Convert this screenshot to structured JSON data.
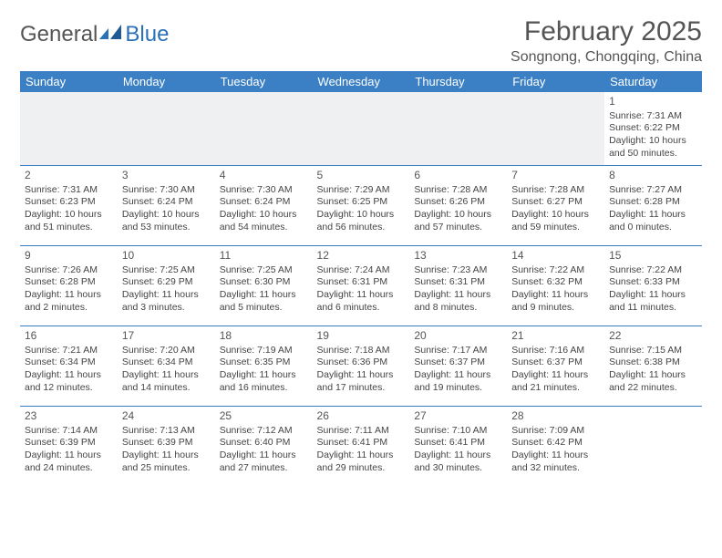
{
  "logo": {
    "text1": "General",
    "text2": "Blue"
  },
  "title": "February 2025",
  "location": "Songnong, Chongqing, China",
  "colors": {
    "header_bg": "#3b7fc4",
    "header_text": "#ffffff",
    "row_divider": "#3b7fc4",
    "empty_bg": "#eef0f2",
    "body_text": "#444444",
    "title_text": "#555555",
    "logo_blue": "#2a71b8"
  },
  "day_headers": [
    "Sunday",
    "Monday",
    "Tuesday",
    "Wednesday",
    "Thursday",
    "Friday",
    "Saturday"
  ],
  "weeks": [
    [
      null,
      null,
      null,
      null,
      null,
      null,
      {
        "n": "1",
        "sr": "Sunrise: 7:31 AM",
        "ss": "Sunset: 6:22 PM",
        "dl": "Daylight: 10 hours and 50 minutes."
      }
    ],
    [
      {
        "n": "2",
        "sr": "Sunrise: 7:31 AM",
        "ss": "Sunset: 6:23 PM",
        "dl": "Daylight: 10 hours and 51 minutes."
      },
      {
        "n": "3",
        "sr": "Sunrise: 7:30 AM",
        "ss": "Sunset: 6:24 PM",
        "dl": "Daylight: 10 hours and 53 minutes."
      },
      {
        "n": "4",
        "sr": "Sunrise: 7:30 AM",
        "ss": "Sunset: 6:24 PM",
        "dl": "Daylight: 10 hours and 54 minutes."
      },
      {
        "n": "5",
        "sr": "Sunrise: 7:29 AM",
        "ss": "Sunset: 6:25 PM",
        "dl": "Daylight: 10 hours and 56 minutes."
      },
      {
        "n": "6",
        "sr": "Sunrise: 7:28 AM",
        "ss": "Sunset: 6:26 PM",
        "dl": "Daylight: 10 hours and 57 minutes."
      },
      {
        "n": "7",
        "sr": "Sunrise: 7:28 AM",
        "ss": "Sunset: 6:27 PM",
        "dl": "Daylight: 10 hours and 59 minutes."
      },
      {
        "n": "8",
        "sr": "Sunrise: 7:27 AM",
        "ss": "Sunset: 6:28 PM",
        "dl": "Daylight: 11 hours and 0 minutes."
      }
    ],
    [
      {
        "n": "9",
        "sr": "Sunrise: 7:26 AM",
        "ss": "Sunset: 6:28 PM",
        "dl": "Daylight: 11 hours and 2 minutes."
      },
      {
        "n": "10",
        "sr": "Sunrise: 7:25 AM",
        "ss": "Sunset: 6:29 PM",
        "dl": "Daylight: 11 hours and 3 minutes."
      },
      {
        "n": "11",
        "sr": "Sunrise: 7:25 AM",
        "ss": "Sunset: 6:30 PM",
        "dl": "Daylight: 11 hours and 5 minutes."
      },
      {
        "n": "12",
        "sr": "Sunrise: 7:24 AM",
        "ss": "Sunset: 6:31 PM",
        "dl": "Daylight: 11 hours and 6 minutes."
      },
      {
        "n": "13",
        "sr": "Sunrise: 7:23 AM",
        "ss": "Sunset: 6:31 PM",
        "dl": "Daylight: 11 hours and 8 minutes."
      },
      {
        "n": "14",
        "sr": "Sunrise: 7:22 AM",
        "ss": "Sunset: 6:32 PM",
        "dl": "Daylight: 11 hours and 9 minutes."
      },
      {
        "n": "15",
        "sr": "Sunrise: 7:22 AM",
        "ss": "Sunset: 6:33 PM",
        "dl": "Daylight: 11 hours and 11 minutes."
      }
    ],
    [
      {
        "n": "16",
        "sr": "Sunrise: 7:21 AM",
        "ss": "Sunset: 6:34 PM",
        "dl": "Daylight: 11 hours and 12 minutes."
      },
      {
        "n": "17",
        "sr": "Sunrise: 7:20 AM",
        "ss": "Sunset: 6:34 PM",
        "dl": "Daylight: 11 hours and 14 minutes."
      },
      {
        "n": "18",
        "sr": "Sunrise: 7:19 AM",
        "ss": "Sunset: 6:35 PM",
        "dl": "Daylight: 11 hours and 16 minutes."
      },
      {
        "n": "19",
        "sr": "Sunrise: 7:18 AM",
        "ss": "Sunset: 6:36 PM",
        "dl": "Daylight: 11 hours and 17 minutes."
      },
      {
        "n": "20",
        "sr": "Sunrise: 7:17 AM",
        "ss": "Sunset: 6:37 PM",
        "dl": "Daylight: 11 hours and 19 minutes."
      },
      {
        "n": "21",
        "sr": "Sunrise: 7:16 AM",
        "ss": "Sunset: 6:37 PM",
        "dl": "Daylight: 11 hours and 21 minutes."
      },
      {
        "n": "22",
        "sr": "Sunrise: 7:15 AM",
        "ss": "Sunset: 6:38 PM",
        "dl": "Daylight: 11 hours and 22 minutes."
      }
    ],
    [
      {
        "n": "23",
        "sr": "Sunrise: 7:14 AM",
        "ss": "Sunset: 6:39 PM",
        "dl": "Daylight: 11 hours and 24 minutes."
      },
      {
        "n": "24",
        "sr": "Sunrise: 7:13 AM",
        "ss": "Sunset: 6:39 PM",
        "dl": "Daylight: 11 hours and 25 minutes."
      },
      {
        "n": "25",
        "sr": "Sunrise: 7:12 AM",
        "ss": "Sunset: 6:40 PM",
        "dl": "Daylight: 11 hours and 27 minutes."
      },
      {
        "n": "26",
        "sr": "Sunrise: 7:11 AM",
        "ss": "Sunset: 6:41 PM",
        "dl": "Daylight: 11 hours and 29 minutes."
      },
      {
        "n": "27",
        "sr": "Sunrise: 7:10 AM",
        "ss": "Sunset: 6:41 PM",
        "dl": "Daylight: 11 hours and 30 minutes."
      },
      {
        "n": "28",
        "sr": "Sunrise: 7:09 AM",
        "ss": "Sunset: 6:42 PM",
        "dl": "Daylight: 11 hours and 32 minutes."
      },
      null
    ]
  ]
}
